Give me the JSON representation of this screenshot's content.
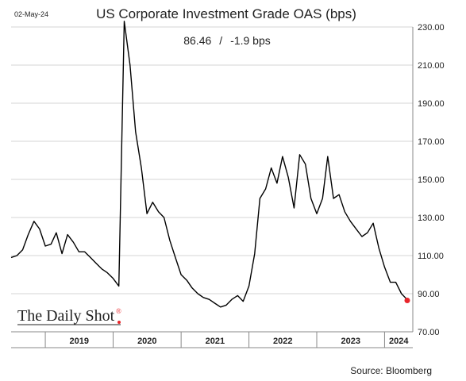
{
  "date_stamp": "02-May-24",
  "title": "US Corporate Investment Grade OAS (bps)",
  "readout": {
    "value": "86.46",
    "separator": "/",
    "change": "-1.9 bps"
  },
  "logo_text": "The Daily Shot",
  "logo_mark": "®",
  "source": "Source: Bloomberg",
  "colors": {
    "line": "#000000",
    "last_point": "#e8262b",
    "grid": "#d4d4d4"
  },
  "chart_data": {
    "type": "line",
    "title": "US Corporate Investment Grade OAS (bps)",
    "xlabel": "",
    "ylabel": "",
    "ylim": [
      70,
      230
    ],
    "y_ticks": [
      "70.00",
      "90.00",
      "110.00",
      "130.00",
      "150.00",
      "170.00",
      "190.00",
      "210.00",
      "230.00"
    ],
    "x_tick_labels": [
      "2019",
      "2020",
      "2021",
      "2022",
      "2023",
      "2024"
    ],
    "x_range": [
      "2018-07",
      "2024-06"
    ],
    "grid": true,
    "series": [
      {
        "name": "",
        "x": [
          "2018-07",
          "2018-08",
          "2018-09",
          "2018-10",
          "2018-11",
          "2018-12",
          "2019-01",
          "2019-02",
          "2019-03",
          "2019-04",
          "2019-05",
          "2019-06",
          "2019-07",
          "2019-08",
          "2019-09",
          "2019-10",
          "2019-11",
          "2019-12",
          "2020-01",
          "2020-02",
          "2020-03",
          "2020-04",
          "2020-05",
          "2020-06",
          "2020-07",
          "2020-08",
          "2020-09",
          "2020-10",
          "2020-11",
          "2020-12",
          "2021-01",
          "2021-02",
          "2021-03",
          "2021-04",
          "2021-05",
          "2021-06",
          "2021-07",
          "2021-08",
          "2021-09",
          "2021-10",
          "2021-11",
          "2021-12",
          "2022-01",
          "2022-02",
          "2022-03",
          "2022-04",
          "2022-05",
          "2022-06",
          "2022-07",
          "2022-08",
          "2022-09",
          "2022-10",
          "2022-11",
          "2022-12",
          "2023-01",
          "2023-02",
          "2023-03",
          "2023-04",
          "2023-05",
          "2023-06",
          "2023-07",
          "2023-08",
          "2023-09",
          "2023-10",
          "2023-11",
          "2023-12",
          "2024-01",
          "2024-02",
          "2024-03",
          "2024-04",
          "2024-05"
        ],
        "values": [
          109,
          110,
          113,
          121,
          128,
          124,
          115,
          116,
          122,
          111,
          121,
          117,
          112,
          112,
          109,
          106,
          103,
          101,
          98,
          94,
          233,
          210,
          175,
          156,
          132,
          138,
          133,
          130,
          118,
          109,
          100,
          97,
          93,
          90,
          88,
          87,
          85,
          83,
          84,
          87,
          89,
          86,
          94,
          111,
          140,
          145,
          156,
          148,
          162,
          151,
          135,
          163,
          158,
          140,
          132,
          140,
          162,
          140,
          142,
          133,
          128,
          124,
          120,
          122,
          127,
          114,
          104,
          96,
          96,
          90,
          87
        ]
      }
    ],
    "last_point": {
      "x": "2024-05-02",
      "value": 86.46
    }
  }
}
